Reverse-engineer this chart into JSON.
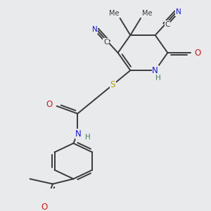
{
  "background_color": "#e8eaec",
  "figsize": [
    3.0,
    3.0
  ],
  "dpi": 100,
  "colors": {
    "C": "#3a3a3a",
    "N": "#1a1acc",
    "O": "#cc1a1a",
    "S": "#b8a000",
    "H": "#4a7a5a",
    "bond": "#3a3a3a"
  },
  "bond_lw": 1.4,
  "dbo": 0.018
}
